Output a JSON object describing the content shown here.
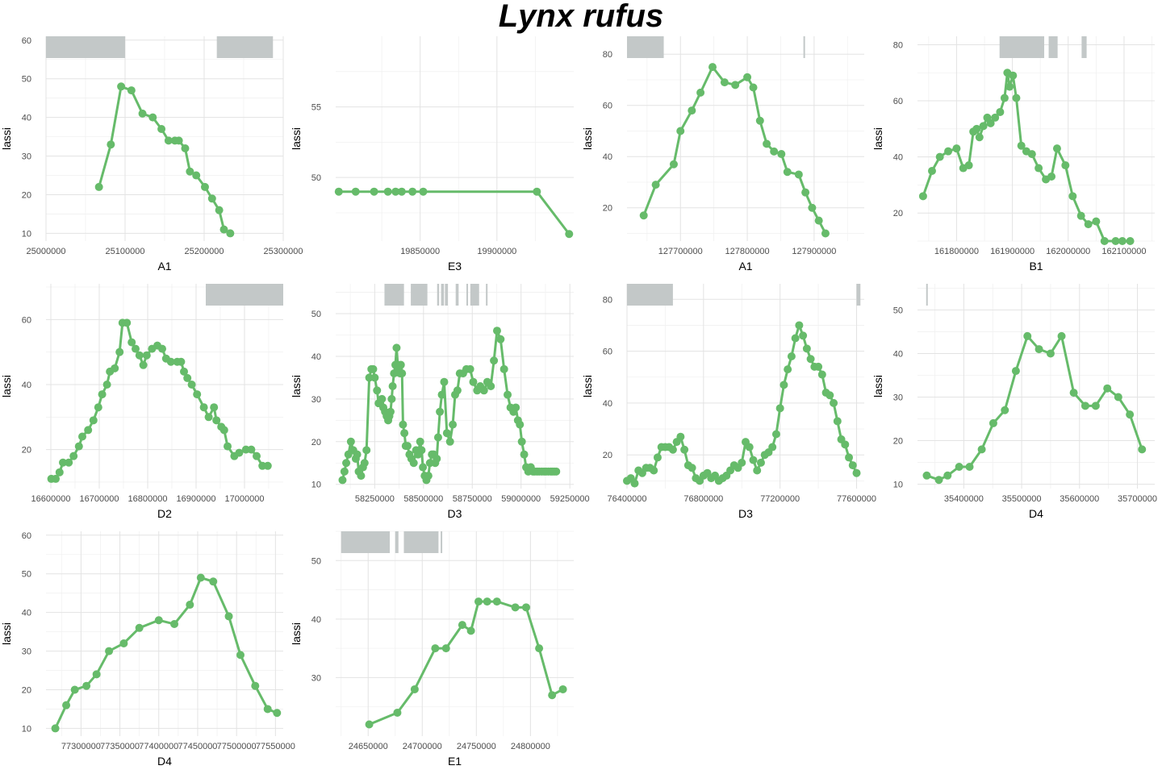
{
  "title": "Lynx rufus",
  "colors": {
    "line": "#66bb6a",
    "block": "#c3c8c8",
    "grid_major": "#e3e3e3",
    "grid_minor": "#f1f1f1"
  },
  "chart_data": [
    {
      "type": "line",
      "xlabel": "A1",
      "ylabel": "lassi",
      "xlim": [
        25000000,
        25300000
      ],
      "ylim": [
        8,
        61
      ],
      "xticks": [
        25000000,
        25100000,
        25200000,
        25300000
      ],
      "yticks": [
        10,
        20,
        30,
        40,
        50,
        60
      ],
      "x": [
        25067000,
        25082000,
        25095000,
        25108000,
        25122000,
        25135000,
        25146000,
        25155000,
        25163000,
        25168000,
        25176000,
        25182000,
        25190000,
        25201000,
        25210000,
        25219000,
        25225000,
        25233000
      ],
      "y": [
        22,
        33,
        48,
        47,
        41,
        40,
        37,
        34,
        34,
        34,
        32,
        26,
        25,
        22,
        19,
        16,
        11,
        10
      ],
      "blocks": [
        [
          25000000,
          25100000
        ],
        [
          25216000,
          25287000
        ]
      ]
    },
    {
      "type": "line",
      "xlabel": "E3",
      "ylabel": "lassi",
      "xlim": [
        19795000,
        19950000
      ],
      "ylim": [
        45.5,
        60
      ],
      "xticks": [
        19850000,
        19900000
      ],
      "yticks": [
        50,
        55
      ],
      "x": [
        19797000,
        19808000,
        19820000,
        19829000,
        19834000,
        19838000,
        19845000,
        19852000,
        19926000,
        19947000
      ],
      "y": [
        49,
        49,
        49,
        49,
        49,
        49,
        49,
        49,
        49,
        46
      ],
      "blocks": []
    },
    {
      "type": "line",
      "xlabel": "A1",
      "ylabel": "lassi",
      "xlim": [
        127620000,
        127975000
      ],
      "ylim": [
        7,
        87
      ],
      "xticks": [
        127700000,
        127800000,
        127900000
      ],
      "yticks": [
        20,
        40,
        60,
        80
      ],
      "x": [
        127645000,
        127663000,
        127690000,
        127700000,
        127717000,
        127730000,
        127748000,
        127766000,
        127782000,
        127800000,
        127809000,
        127819000,
        127829000,
        127840000,
        127851000,
        127860000,
        127877000,
        127887000,
        127897000,
        127907000,
        127917000
      ],
      "y": [
        17,
        29,
        37,
        50,
        58,
        65,
        75,
        69,
        68,
        71,
        67,
        54,
        45,
        42,
        41,
        34,
        33,
        26,
        20,
        15,
        10
      ],
      "blocks": [
        [
          127620000,
          127675000
        ],
        [
          127884000,
          127886000
        ]
      ]
    },
    {
      "type": "line",
      "xlabel": "B1",
      "ylabel": "lassi",
      "xlim": [
        161730000,
        162155000
      ],
      "ylim": [
        10,
        83
      ],
      "xticks": [
        161800000,
        161900000,
        162000000,
        162100000
      ],
      "yticks": [
        20,
        40,
        60,
        80
      ],
      "x": [
        161740000,
        161756000,
        161770000,
        161785000,
        161800000,
        161812000,
        161822000,
        161830000,
        161836000,
        161841000,
        161848000,
        161855000,
        161861000,
        161869000,
        161878000,
        161886000,
        161891000,
        161895000,
        161901000,
        161907000,
        161916000,
        161925000,
        161935000,
        161947000,
        161960000,
        161970000,
        161980000,
        161995000,
        162008000,
        162023000,
        162036000,
        162050000,
        162065000,
        162085000,
        162097000,
        162111000
      ],
      "y": [
        26,
        35,
        40,
        42,
        43,
        36,
        37,
        49,
        50,
        47,
        51,
        54,
        52,
        54,
        56,
        61,
        70,
        65,
        69,
        61,
        44,
        42,
        41,
        36,
        32,
        33,
        43,
        37,
        26,
        19,
        16,
        17,
        10,
        10,
        10,
        10
      ],
      "blocks": [
        [
          161877000,
          161957000
        ],
        [
          161965000,
          161981000
        ],
        [
          162024000,
          162033000
        ]
      ]
    },
    {
      "type": "line",
      "xlabel": "D2",
      "ylabel": "lassi",
      "xlim": [
        16590000,
        17080000
      ],
      "ylim": [
        8,
        71
      ],
      "xticks": [
        16600000,
        16700000,
        16800000,
        16900000,
        17000000
      ],
      "yticks": [
        20,
        40,
        60
      ],
      "x": [
        16601000,
        16610000,
        16618000,
        16625000,
        16637000,
        16647000,
        16658000,
        16665000,
        16677000,
        16688000,
        16698000,
        16706000,
        16716000,
        16722000,
        16732000,
        16742000,
        16748000,
        16757000,
        16767000,
        16775000,
        16783000,
        16791000,
        16798000,
        16809000,
        16820000,
        16830000,
        16838000,
        16848000,
        16861000,
        16869000,
        16875000,
        16882000,
        16891000,
        16902000,
        16916000,
        16926000,
        16937000,
        16942000,
        16952000,
        16958000,
        16965000,
        16979000,
        16989000,
        17003000,
        17014000,
        17025000,
        17037000,
        17048000
      ],
      "y": [
        11,
        11,
        13,
        16,
        16,
        18,
        21,
        24,
        26,
        29,
        33,
        37,
        40,
        44,
        45,
        50,
        59,
        59,
        53,
        51,
        49,
        46,
        49,
        51,
        52,
        51,
        48,
        47,
        47,
        47,
        44,
        42,
        40,
        37,
        33,
        30,
        33,
        29,
        27,
        26,
        21,
        18,
        19,
        20,
        20,
        18,
        15,
        15
      ],
      "blocks": [
        [
          16920000,
          17080000
        ]
      ]
    },
    {
      "type": "line",
      "xlabel": "D3",
      "ylabel": "lassi",
      "xlim": [
        58050000,
        59270000
      ],
      "ylim": [
        9,
        57
      ],
      "xticks": [
        58250000,
        58500000,
        58750000,
        59000000,
        59250000
      ],
      "yticks": [
        10,
        20,
        30,
        40,
        50
      ],
      "x": [
        58085000,
        58095000,
        58104000,
        58115000,
        58128000,
        58140000,
        58153000,
        58160000,
        58168000,
        58180000,
        58190000,
        58198000,
        58208000,
        58222000,
        58233000,
        58242000,
        58250000,
        58262000,
        58270000,
        58278000,
        58287000,
        58294000,
        58303000,
        58311000,
        58319000,
        58325000,
        58331000,
        58337000,
        58342000,
        58349000,
        58356000,
        58362000,
        58368000,
        58374000,
        58380000,
        58384000,
        58390000,
        58395000,
        58402000,
        58409000,
        58418000,
        58428000,
        58438000,
        58450000,
        58462000,
        58472000,
        58483000,
        58490000,
        58497000,
        58506000,
        58515000,
        58525000,
        58533000,
        58543000,
        58552000,
        58560000,
        58568000,
        58575000,
        58584000,
        58594000,
        58606000,
        58620000,
        58636000,
        58650000,
        58662000,
        58674000,
        58686000,
        58703000,
        58720000,
        58739000,
        58755000,
        58775000,
        58791000,
        58810000,
        58827000,
        58845000,
        58861000,
        58877000,
        58895000,
        58913000,
        58931000,
        58946000,
        58961000,
        58973000,
        58984000,
        58994000,
        59004000,
        59016000,
        59026000,
        59037000,
        59050000,
        59061000,
        59070000,
        59082000,
        59093000,
        59106000,
        59118000,
        59128000,
        59140000,
        59152000,
        59160000,
        59170000,
        59180000
      ],
      "y": [
        11,
        13,
        15,
        17,
        20,
        18,
        16,
        17,
        13,
        12,
        14,
        15,
        18,
        35,
        37,
        37,
        35,
        32,
        29,
        29,
        30,
        28,
        27,
        26,
        25,
        26,
        27,
        30,
        33,
        36,
        38,
        42,
        38,
        37,
        36,
        38,
        36,
        24,
        22,
        19,
        19,
        17,
        16,
        15,
        18,
        17,
        20,
        18,
        14,
        12,
        11,
        12,
        15,
        17,
        17,
        15,
        16,
        21,
        27,
        31,
        34,
        22,
        20,
        24,
        31,
        32,
        36,
        36,
        37,
        37,
        34,
        32,
        33,
        32,
        34,
        33,
        39,
        46,
        44,
        37,
        31,
        28,
        27,
        28,
        25,
        24,
        20,
        17,
        14,
        13,
        14,
        13,
        13,
        13,
        13,
        13,
        13,
        13,
        13,
        13,
        13,
        13,
        13
      ],
      "blocks": [
        [
          58300000,
          58400000
        ],
        [
          58435000,
          58520000
        ],
        [
          58570000,
          58580000
        ],
        [
          58590000,
          58605000
        ],
        [
          58610000,
          58625000
        ],
        [
          58665000,
          58680000
        ],
        [
          58720000,
          58725000
        ],
        [
          58740000,
          58785000
        ],
        [
          58820000,
          58825000
        ]
      ]
    },
    {
      "type": "line",
      "xlabel": "D3",
      "ylabel": "lassi",
      "xlim": [
        76400000,
        77640000
      ],
      "ylim": [
        7,
        86
      ],
      "xticks": [
        76400000,
        76800000,
        77200000,
        77600000
      ],
      "yticks": [
        20,
        40,
        60,
        80
      ],
      "x": [
        76400000,
        76420000,
        76440000,
        76460000,
        76480000,
        76500000,
        76520000,
        76540000,
        76560000,
        76580000,
        76600000,
        76620000,
        76640000,
        76660000,
        76680000,
        76700000,
        76720000,
        76740000,
        76760000,
        76780000,
        76800000,
        76820000,
        76840000,
        76860000,
        76880000,
        76900000,
        76920000,
        76940000,
        76960000,
        76980000,
        77000000,
        77020000,
        77040000,
        77060000,
        77080000,
        77100000,
        77120000,
        77140000,
        77160000,
        77180000,
        77200000,
        77220000,
        77240000,
        77260000,
        77280000,
        77300000,
        77320000,
        77340000,
        77360000,
        77380000,
        77400000,
        77420000,
        77440000,
        77460000,
        77480000,
        77500000,
        77520000,
        77540000,
        77560000,
        77580000,
        77600000
      ],
      "y": [
        10,
        11,
        9,
        14,
        13,
        15,
        15,
        14,
        19,
        23,
        23,
        23,
        22,
        25,
        27,
        22,
        16,
        15,
        11,
        10,
        12,
        13,
        11,
        12,
        10,
        11,
        12,
        14,
        16,
        15,
        17,
        25,
        23,
        18,
        14,
        17,
        20,
        21,
        23,
        28,
        38,
        47,
        53,
        58,
        65,
        70,
        66,
        61,
        57,
        54,
        54,
        51,
        44,
        43,
        40,
        33,
        26,
        24,
        19,
        16,
        13
      ],
      "blocks": [
        [
          76400000,
          76640000
        ],
        [
          77600000,
          77620000
        ]
      ]
    },
    {
      "type": "line",
      "xlabel": "D4",
      "ylabel": "lassi",
      "xlim": [
        35320000,
        35730000
      ],
      "ylim": [
        9,
        56
      ],
      "xticks": [
        35400000,
        35500000,
        35600000,
        35700000
      ],
      "yticks": [
        10,
        20,
        30,
        40,
        50
      ],
      "x": [
        35336000,
        35357000,
        35372000,
        35392000,
        35410000,
        35431000,
        35451000,
        35471000,
        35490000,
        35510000,
        35530000,
        35550000,
        35569000,
        35590000,
        35610000,
        35628000,
        35648000,
        35667000,
        35687000,
        35708000
      ],
      "y": [
        12,
        11,
        12,
        14,
        14,
        18,
        24,
        27,
        36,
        44,
        41,
        40,
        44,
        31,
        28,
        28,
        32,
        30,
        26,
        18
      ],
      "blocks": [
        [
          35335000,
          35337000
        ]
      ]
    },
    {
      "type": "line",
      "xlabel": "D4",
      "ylabel": "lassi",
      "xlim": [
        77255000,
        77560000
      ],
      "ylim": [
        8,
        61
      ],
      "xticks": [
        77300000,
        77350000,
        77400000,
        77450000,
        77500000,
        77550000
      ],
      "yticks": [
        10,
        20,
        30,
        40,
        50,
        60
      ],
      "x": [
        77267000,
        77281000,
        77292000,
        77307000,
        77320000,
        77336000,
        77355000,
        77375000,
        77400000,
        77420000,
        77440000,
        77454000,
        77470000,
        77490000,
        77505000,
        77524000,
        77540000,
        77552000
      ],
      "y": [
        10,
        16,
        20,
        21,
        24,
        30,
        32,
        36,
        38,
        37,
        42,
        49,
        48,
        39,
        29,
        21,
        15,
        14
      ],
      "blocks": []
    },
    {
      "type": "line",
      "xlabel": "E1",
      "ylabel": "lassi",
      "xlim": [
        24620000,
        24840000
      ],
      "ylim": [
        20,
        55
      ],
      "xticks": [
        24650000,
        24700000,
        24750000,
        24800000
      ],
      "yticks": [
        30,
        40,
        50
      ],
      "x": [
        24651000,
        24677000,
        24693000,
        24712000,
        24722000,
        24737000,
        24745000,
        24752000,
        24760000,
        24769000,
        24786000,
        24796000,
        24808000,
        24820000,
        24830000
      ],
      "y": [
        22,
        24,
        28,
        35,
        35,
        39,
        38,
        43,
        43,
        43,
        42,
        42,
        35,
        27,
        28
      ],
      "blocks": [
        [
          24625000,
          24670000
        ],
        [
          24675000,
          24678000
        ],
        [
          24683000,
          24715000
        ],
        [
          24717000,
          24718000
        ]
      ]
    }
  ]
}
